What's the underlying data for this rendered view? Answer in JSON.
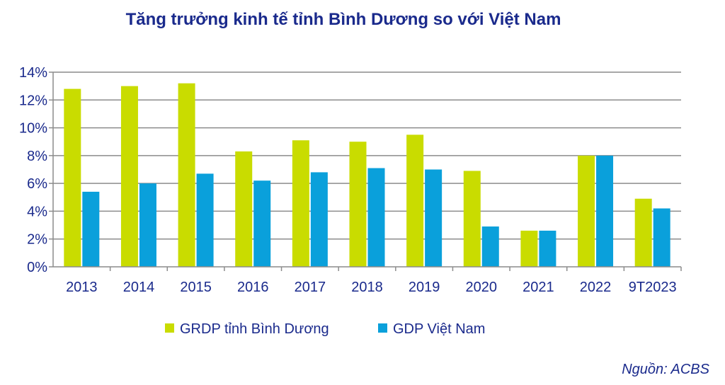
{
  "chart_data": {
    "type": "bar",
    "title": "Tăng trưởng kinh tế tỉnh Bình Dương so với Việt Nam",
    "categories": [
      "2013",
      "2014",
      "2015",
      "2016",
      "2017",
      "2018",
      "2019",
      "2020",
      "2021",
      "2022",
      "9T2023"
    ],
    "series": [
      {
        "name": "GRDP tỉnh Bình Dương",
        "color": "#c9dc00",
        "values": [
          12.8,
          13.0,
          13.2,
          8.3,
          9.1,
          9.0,
          9.5,
          6.9,
          2.6,
          8.0,
          4.9
        ]
      },
      {
        "name": "GDP Việt Nam",
        "color": "#0aa0db",
        "values": [
          5.4,
          6.0,
          6.7,
          6.2,
          6.8,
          7.1,
          7.0,
          2.9,
          2.6,
          8.0,
          4.2
        ]
      }
    ],
    "ylim": [
      0,
      14
    ],
    "yticks": [
      0,
      2,
      4,
      6,
      8,
      10,
      12,
      14
    ],
    "ytick_labels": [
      "0%",
      "2%",
      "4%",
      "6%",
      "8%",
      "10%",
      "12%",
      "14%"
    ],
    "xlabel": "",
    "ylabel": "",
    "grid": true,
    "legend_position": "bottom"
  },
  "source_text": "Nguồn: ACBS"
}
